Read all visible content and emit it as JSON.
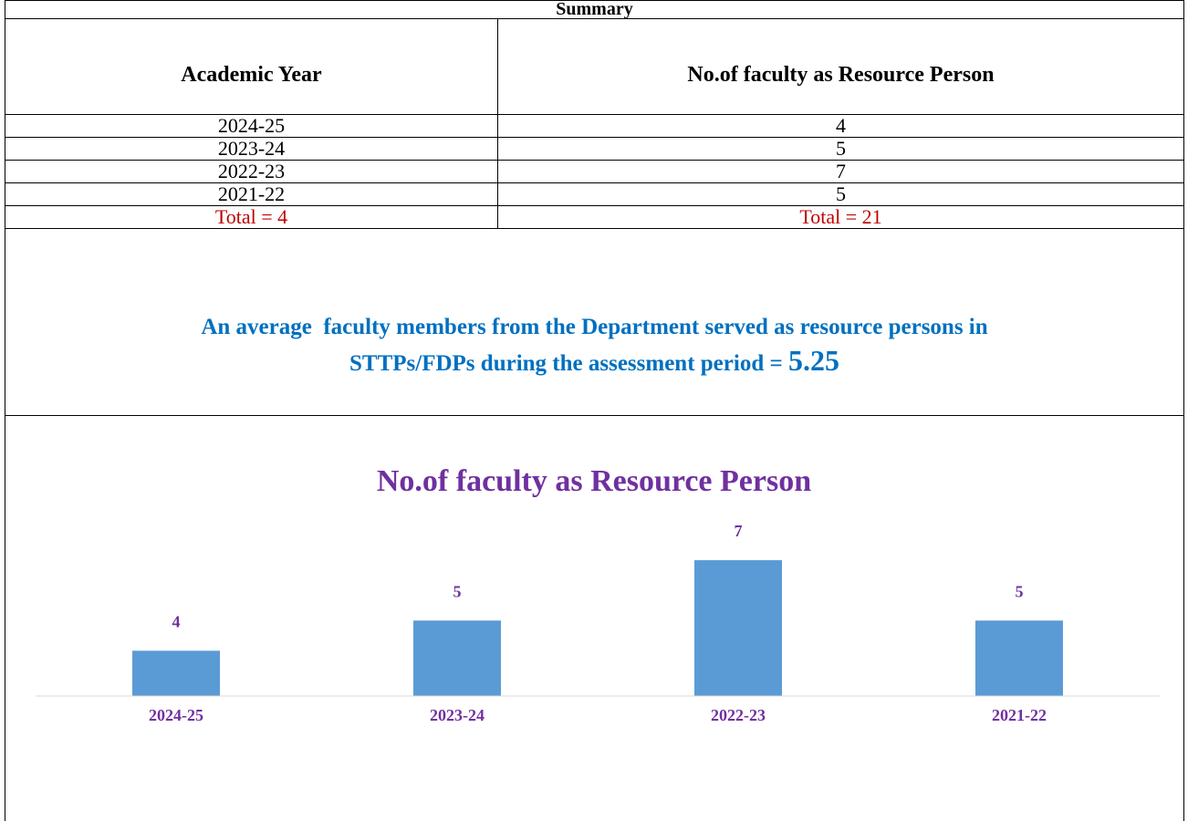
{
  "table": {
    "title": "Summary",
    "header": [
      "Academic Year",
      "No.of faculty as Resource Person"
    ],
    "rows": [
      [
        "2024-25",
        "4"
      ],
      [
        "2023-24",
        "5"
      ],
      [
        "2022-23",
        "7"
      ],
      [
        "2021-22",
        "5"
      ]
    ],
    "totals": [
      "Total = 4",
      "Total = 21"
    ]
  },
  "note": {
    "lines": [
      "An average  faculty members from the Department served as resource persons in",
      "STTPs/FDPs during the assessment period = "
    ],
    "value": "5.25"
  },
  "chart_data": {
    "type": "bar",
    "title": "No.of faculty as Resource Person",
    "categories": [
      "2024-25",
      "2023-24",
      "2022-23",
      "2021-22"
    ],
    "values": [
      4,
      5,
      7,
      5
    ],
    "color": "#5b9bd5",
    "ylim": [
      2.5,
      8
    ]
  }
}
